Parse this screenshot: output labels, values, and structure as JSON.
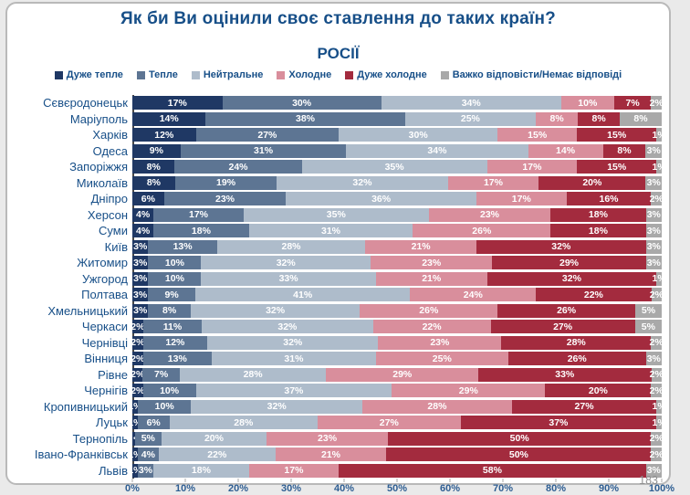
{
  "page": {
    "number": "183"
  },
  "chart_data": {
    "type": "bar",
    "variant": "horizontal-stacked-100",
    "title": "Як би Ви оцінили своє ставлення до таких країн?",
    "subtitle": "РОСІЇ",
    "legend_position": "top",
    "grid": false,
    "xlim": [
      0,
      100
    ],
    "x_ticks": [
      "0%",
      "10%",
      "20%",
      "30%",
      "40%",
      "50%",
      "60%",
      "70%",
      "80%",
      "90%",
      "100%"
    ],
    "categories": [
      "Сєвєродонецьк",
      "Маріуполь",
      "Харків",
      "Одеса",
      "Запоріжжя",
      "Миколаїв",
      "Дніпро",
      "Херсон",
      "Суми",
      "Київ",
      "Житомир",
      "Ужгород",
      "Полтава",
      "Хмельницький",
      "Черкаси",
      "Чернівці",
      "Вінниця",
      "Рівне",
      "Чернігів",
      "Кропивницький",
      "Луцьк",
      "Тернопіль",
      "Івано-Франківськ",
      "Львів"
    ],
    "series": [
      {
        "name": "Дуже тепле",
        "color": "#1f3864",
        "values": [
          17,
          14,
          12,
          9,
          8,
          8,
          6,
          4,
          4,
          3,
          3,
          3,
          3,
          3,
          2,
          2,
          2,
          2,
          2,
          1,
          1,
          0.5,
          1,
          1
        ],
        "labels": [
          "17%",
          "14%",
          "12%",
          "9%",
          "8%",
          "8%",
          "6%",
          "4%",
          "4%",
          "3%",
          "3%",
          "3%",
          "3%",
          "3%",
          "2%",
          "2%",
          "2%",
          "2%",
          "2%",
          "1%",
          "1%",
          "<1%",
          "1%",
          "1%"
        ]
      },
      {
        "name": "Тепле",
        "color": "#5d7593",
        "values": [
          30,
          38,
          27,
          31,
          24,
          19,
          23,
          17,
          18,
          13,
          10,
          10,
          9,
          8,
          11,
          12,
          13,
          7,
          10,
          10,
          6,
          5,
          4,
          3
        ],
        "labels": [
          "30%",
          "38%",
          "27%",
          "31%",
          "24%",
          "19%",
          "23%",
          "17%",
          "18%",
          "13%",
          "10%",
          "10%",
          "9%",
          "8%",
          "11%",
          "12%",
          "13%",
          "7%",
          "10%",
          "10%",
          "6%",
          "5%",
          "4%",
          "3%"
        ]
      },
      {
        "name": "Нейтральне",
        "color": "#aebccb",
        "values": [
          34,
          25,
          30,
          34,
          35,
          32,
          36,
          35,
          31,
          28,
          32,
          33,
          41,
          32,
          32,
          32,
          31,
          28,
          37,
          32,
          28,
          20,
          22,
          18
        ],
        "labels": [
          "34%",
          "25%",
          "30%",
          "34%",
          "35%",
          "32%",
          "36%",
          "35%",
          "31%",
          "28%",
          "32%",
          "33%",
          "41%",
          "32%",
          "32%",
          "32%",
          "31%",
          "28%",
          "37%",
          "32%",
          "28%",
          "20%",
          "22%",
          "18%"
        ]
      },
      {
        "name": "Холодне",
        "color": "#d98e9c",
        "values": [
          10,
          8,
          15,
          14,
          17,
          17,
          17,
          23,
          26,
          21,
          23,
          21,
          24,
          26,
          22,
          23,
          25,
          29,
          29,
          28,
          27,
          23,
          21,
          17
        ],
        "labels": [
          "10%",
          "8%",
          "15%",
          "14%",
          "17%",
          "17%",
          "17%",
          "23%",
          "26%",
          "21%",
          "23%",
          "21%",
          "24%",
          "26%",
          "22%",
          "23%",
          "25%",
          "29%",
          "29%",
          "28%",
          "27%",
          "23%",
          "21%",
          "17%"
        ]
      },
      {
        "name": "Дуже холодне",
        "color": "#a32b3e",
        "values": [
          7,
          8,
          15,
          8,
          15,
          20,
          16,
          18,
          18,
          32,
          29,
          32,
          22,
          26,
          27,
          28,
          26,
          33,
          20,
          27,
          37,
          50,
          50,
          58
        ],
        "labels": [
          "7%",
          "8%",
          "15%",
          "8%",
          "15%",
          "20%",
          "16%",
          "18%",
          "18%",
          "32%",
          "29%",
          "32%",
          "22%",
          "26%",
          "27%",
          "28%",
          "26%",
          "33%",
          "20%",
          "27%",
          "37%",
          "50%",
          "50%",
          "58%"
        ]
      },
      {
        "name": "Важко відповісти/Немає відповіді",
        "color": "#a9a9a9",
        "values": [
          2,
          8,
          1,
          3,
          1,
          3,
          2,
          3,
          3,
          3,
          3,
          1,
          2,
          5,
          5,
          2,
          3,
          2,
          2,
          1,
          1,
          2,
          2,
          3
        ],
        "labels": [
          "2%",
          "8%",
          "1%",
          "3%",
          "1%",
          "3%",
          "2%",
          "3%",
          "3%",
          "3%",
          "3%",
          "1%",
          "2%",
          "5%",
          "5%",
          "2%",
          "3%",
          "2%",
          "2%",
          "1%",
          "1%",
          "2%",
          "2%",
          "3%"
        ]
      }
    ]
  }
}
